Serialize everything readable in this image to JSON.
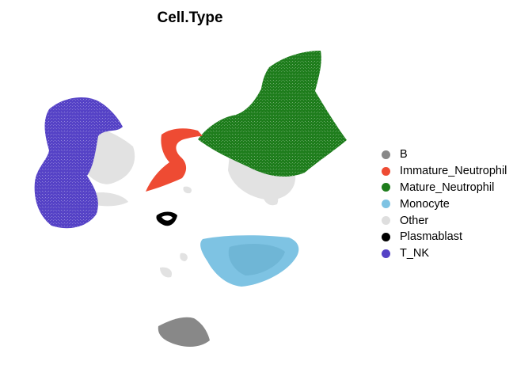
{
  "chart_data": {
    "type": "scatter",
    "title": "Cell.Type",
    "xlabel": "",
    "ylabel": "",
    "legend_position": "right",
    "axes_visible": false,
    "grid": false,
    "series": [
      {
        "name": "B",
        "color": "#888888"
      },
      {
        "name": "Immature_Neutrophil",
        "color": "#EE4B33"
      },
      {
        "name": "Mature_Neutrophil",
        "color": "#1E7D1C"
      },
      {
        "name": "Monocyte",
        "color": "#7EC3E3"
      },
      {
        "name": "Other",
        "color": "#DEDEDE"
      },
      {
        "name": "Plasmablast",
        "color": "#000000"
      },
      {
        "name": "T_NK",
        "color": "#5542C6"
      }
    ]
  }
}
